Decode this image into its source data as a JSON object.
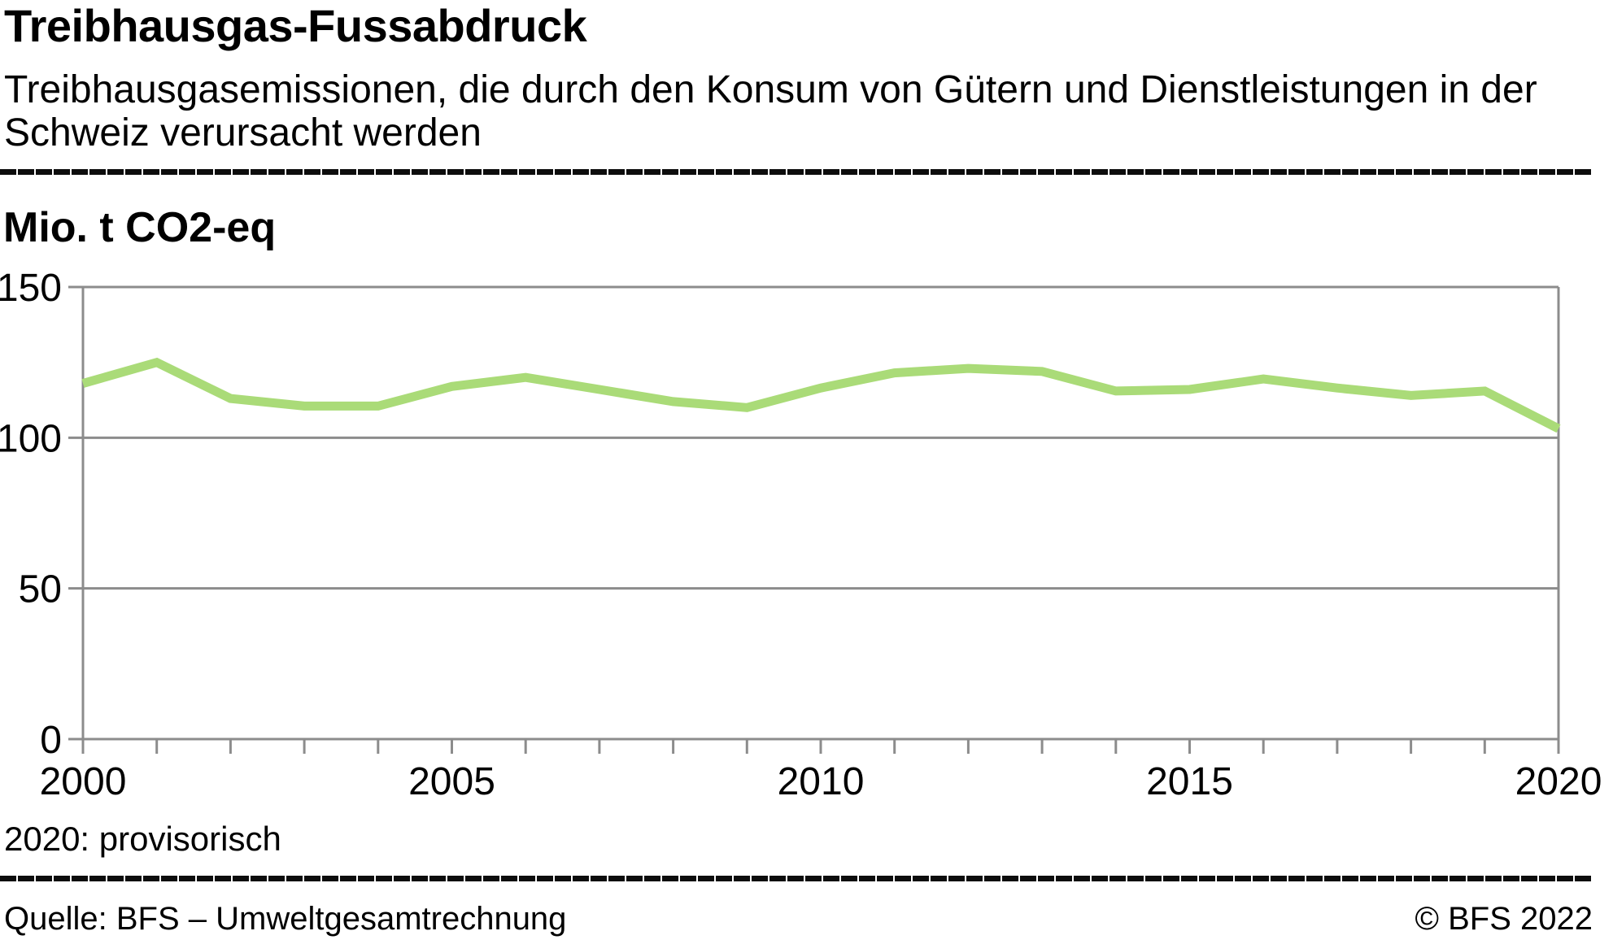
{
  "header": {
    "title": "Treibhausgas-Fussabdruck",
    "subtitle": "Treibhausgasemissionen, die durch den Konsum von Gütern und Dienstleistungen in der\nSchweiz verursacht werden"
  },
  "footnote": "2020: provisorisch",
  "footer": {
    "source": "Quelle: BFS – Umweltgesamtrechnung",
    "copyright": "© BFS 2022"
  },
  "chart_data": {
    "type": "line",
    "title": "Treibhausgas-Fussabdruck",
    "unit_label": "Mio. t CO2-eq",
    "x": [
      2000,
      2001,
      2002,
      2003,
      2004,
      2005,
      2006,
      2007,
      2008,
      2009,
      2010,
      2011,
      2012,
      2013,
      2014,
      2015,
      2016,
      2017,
      2018,
      2019,
      2020
    ],
    "series": [
      {
        "name": "Treibhausgas-Fussabdruck",
        "values": [
          118,
          125,
          113,
          110.5,
          110.5,
          117,
          120,
          116,
          112,
          110,
          116.5,
          121.5,
          123,
          122,
          115.5,
          116,
          119.5,
          116.5,
          114,
          115.5,
          103
        ]
      }
    ],
    "xlim": [
      2000,
      2020
    ],
    "ylim": [
      0,
      150
    ],
    "x_tick_labels": [
      2000,
      2005,
      2010,
      2015,
      2020
    ],
    "x_minor_tick_step": 1,
    "y_ticks": [
      0,
      50,
      100,
      150
    ],
    "grid": true,
    "legend": "none",
    "colors": {
      "line": "#aadb78",
      "axis": "#8c8c8c",
      "grid": "#8c8c8c",
      "text": "#000000"
    }
  }
}
